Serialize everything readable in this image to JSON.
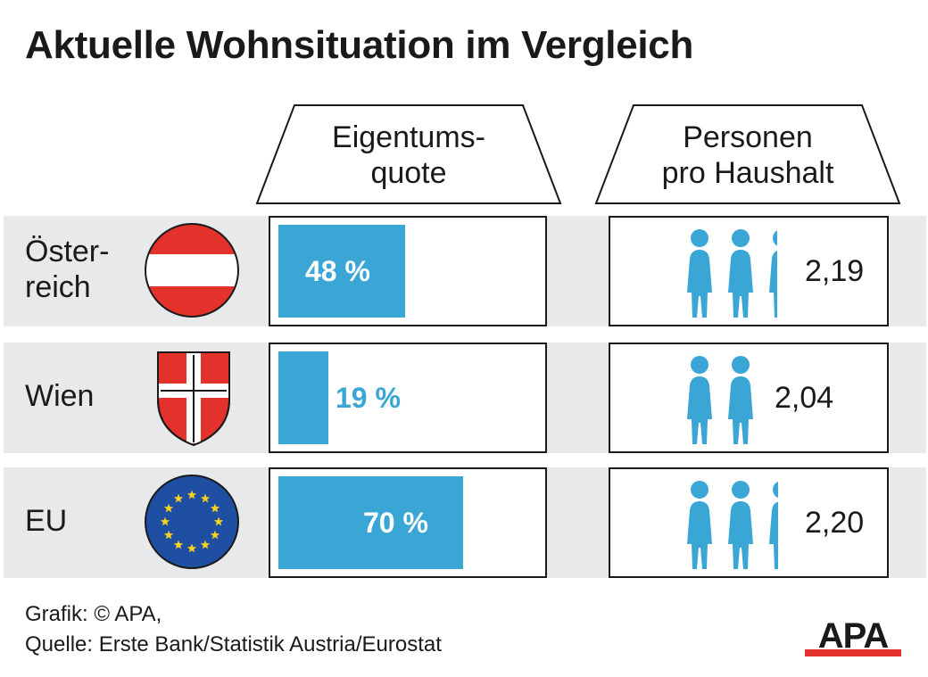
{
  "title": "Aktuelle Wohnsituation im Vergleich",
  "headers": {
    "quota": "Eigentums-\nquote",
    "persons": "Personen\npro Haushalt"
  },
  "chart_data": {
    "type": "bar",
    "categories": [
      "Österreich",
      "Wien",
      "EU"
    ],
    "category_labels": [
      "Öster-\nreich",
      "Wien",
      "EU"
    ],
    "series": [
      {
        "name": "Eigentums-\nquote",
        "values": [
          48,
          19,
          70
        ],
        "labels": [
          "48 %",
          "19 %",
          "70 %"
        ],
        "unit": "%"
      },
      {
        "name": "Personen\npro Haushalt",
        "values": [
          2.19,
          2.04,
          2.2
        ],
        "labels": [
          "2,19",
          "2,04",
          "2,20"
        ]
      }
    ],
    "xlim": [
      0,
      100
    ]
  },
  "footer": {
    "credit": "Grafik: © APA,",
    "source": "Quelle: Erste Bank/Statistik Austria/Eurostat"
  },
  "logo": "APA",
  "colors": {
    "bar": "#3aa6d6",
    "austria_red": "#e3312b",
    "eu_blue": "#1f4fa3",
    "eu_star": "#f7d21e",
    "row_bg": "#e8e9eb",
    "logo_red": "#e3312b"
  },
  "icons": [
    "austria-flag-icon",
    "vienna-coat-of-arms-icon",
    "eu-flag-icon",
    "person-icon"
  ]
}
